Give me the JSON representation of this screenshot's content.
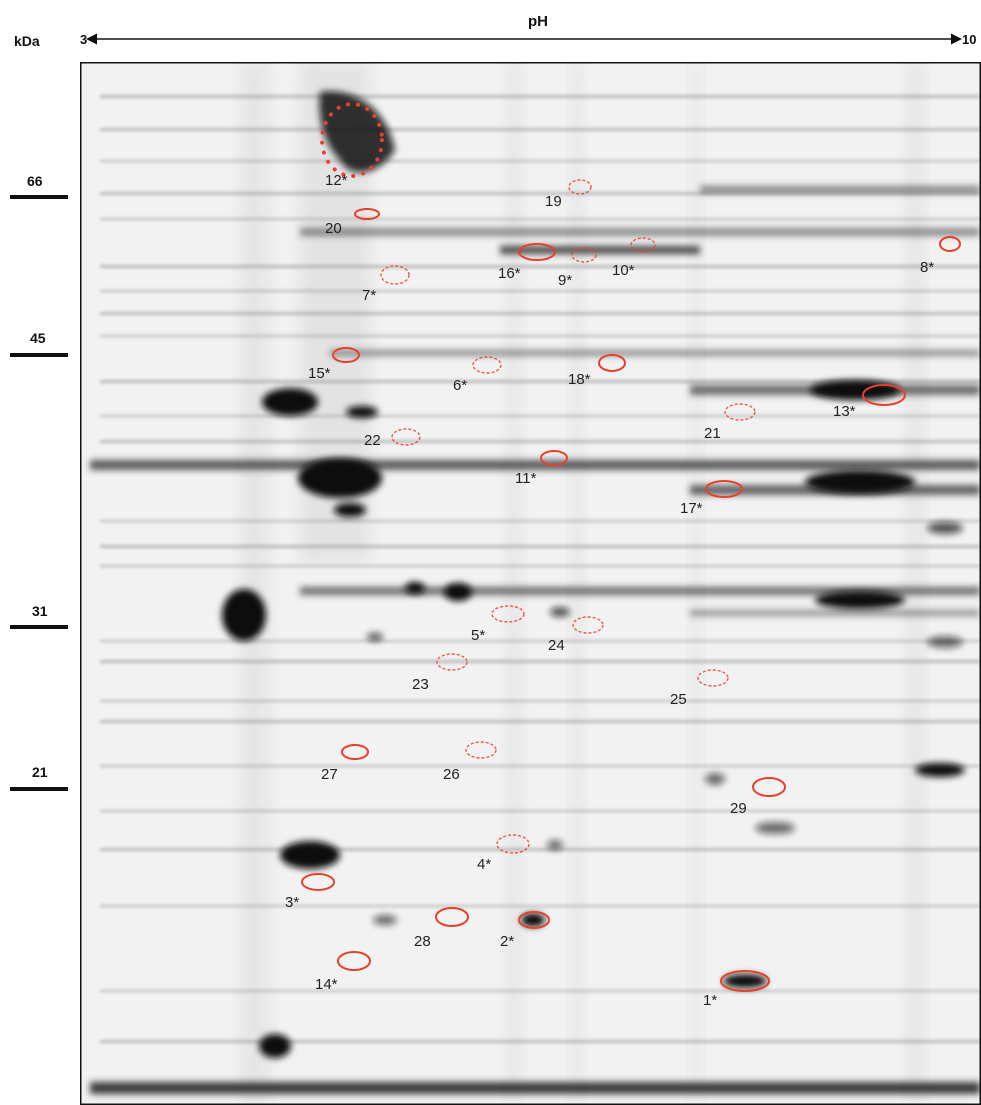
{
  "axis": {
    "mw_unit": "kDa",
    "ph_title": "pH",
    "ph_start": "3",
    "ph_end": "10"
  },
  "mw_markers": [
    "66",
    "45",
    "31",
    "21"
  ],
  "spots": [
    {
      "label": "12*",
      "style": "dotted"
    },
    {
      "label": "19",
      "style": "dashed"
    },
    {
      "label": "20",
      "style": "solid"
    },
    {
      "label": "16*",
      "style": "solid"
    },
    {
      "label": "9*",
      "style": "dashed"
    },
    {
      "label": "10*",
      "style": "dashed"
    },
    {
      "label": "8*",
      "style": "solid"
    },
    {
      "label": "7*",
      "style": "dashed"
    },
    {
      "label": "15*",
      "style": "solid"
    },
    {
      "label": "6*",
      "style": "dashed"
    },
    {
      "label": "18*",
      "style": "solid"
    },
    {
      "label": "13*",
      "style": "solid"
    },
    {
      "label": "21",
      "style": "dashed"
    },
    {
      "label": "22",
      "style": "dashed"
    },
    {
      "label": "11*",
      "style": "solid"
    },
    {
      "label": "17*",
      "style": "solid"
    },
    {
      "label": "5*",
      "style": "dashed"
    },
    {
      "label": "24",
      "style": "dashed"
    },
    {
      "label": "23",
      "style": "dashed"
    },
    {
      "label": "25",
      "style": "dashed"
    },
    {
      "label": "27",
      "style": "solid"
    },
    {
      "label": "26",
      "style": "dashed"
    },
    {
      "label": "29",
      "style": "solid"
    },
    {
      "label": "4*",
      "style": "dashed"
    },
    {
      "label": "3*",
      "style": "solid"
    },
    {
      "label": "28",
      "style": "solid"
    },
    {
      "label": "2*",
      "style": "solid"
    },
    {
      "label": "14*",
      "style": "solid"
    },
    {
      "label": "1*",
      "style": "solid"
    }
  ],
  "colors": {
    "marker_circle": "#e8402a",
    "gel_background": "#f2f2f2",
    "band": "#1a1a1a",
    "frame": "#111111"
  }
}
